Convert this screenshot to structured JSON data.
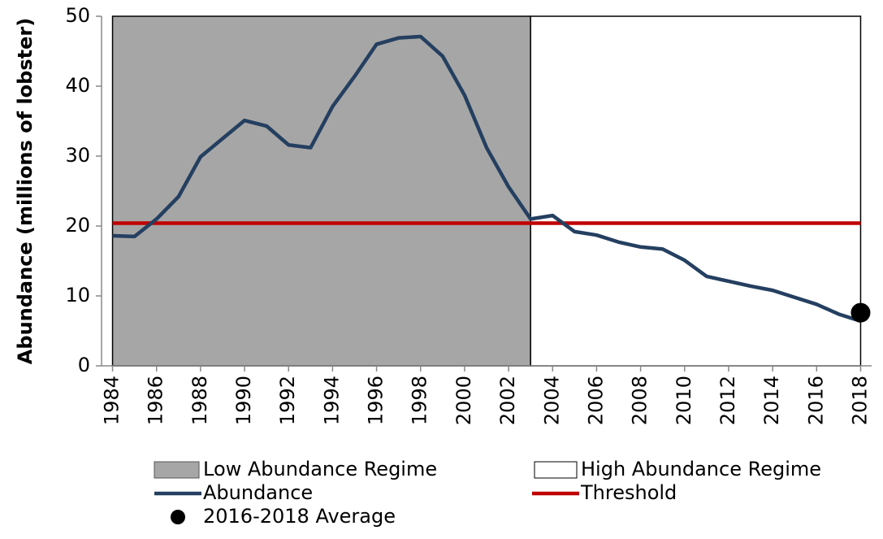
{
  "chart_data": {
    "type": "line",
    "y_label": "Abundance (millions of lobster)",
    "x": [
      1984,
      1985,
      1986,
      1987,
      1988,
      1989,
      1990,
      1991,
      1992,
      1993,
      1994,
      1995,
      1996,
      1997,
      1998,
      1999,
      2000,
      2001,
      2002,
      2003,
      2004,
      2005,
      2006,
      2007,
      2008,
      2009,
      2010,
      2011,
      2012,
      2013,
      2014,
      2015,
      2016,
      2017,
      2018
    ],
    "series": [
      {
        "name": "Abundance",
        "color": "#243f60",
        "values": [
          18.6,
          18.5,
          21.0,
          24.2,
          29.9,
          32.5,
          35.1,
          34.3,
          31.6,
          31.2,
          37.1,
          41.4,
          46.0,
          46.9,
          47.1,
          44.3,
          38.7,
          31.2,
          25.6,
          21.0,
          21.5,
          19.2,
          18.7,
          17.7,
          17.0,
          16.7,
          15.1,
          12.8,
          12.1,
          11.4,
          10.8,
          9.8,
          8.8,
          7.4,
          6.4
        ]
      }
    ],
    "threshold": {
      "name": "Threshold",
      "color": "#c00000",
      "value": 20.4
    },
    "regions": [
      {
        "name": "Low Abundance Regime",
        "start": 1984,
        "end": 2003,
        "color": "#a6a6a6"
      },
      {
        "name": "High Abundance Regime",
        "start": 2003,
        "end": 2018,
        "color": "#ffffff"
      }
    ],
    "point": {
      "name": "2016-2018 Average",
      "x": 2018,
      "value": 7.6,
      "color": "#000000"
    },
    "xlim": [
      1983.5,
      2018.5
    ],
    "xticks": [
      1984,
      1986,
      1988,
      1990,
      1992,
      1994,
      1996,
      1998,
      2000,
      2002,
      2004,
      2006,
      2008,
      2010,
      2012,
      2014,
      2016,
      2018
    ],
    "ylim": [
      0,
      50
    ],
    "yticks": [
      0,
      10,
      20,
      30,
      40,
      50
    ]
  }
}
